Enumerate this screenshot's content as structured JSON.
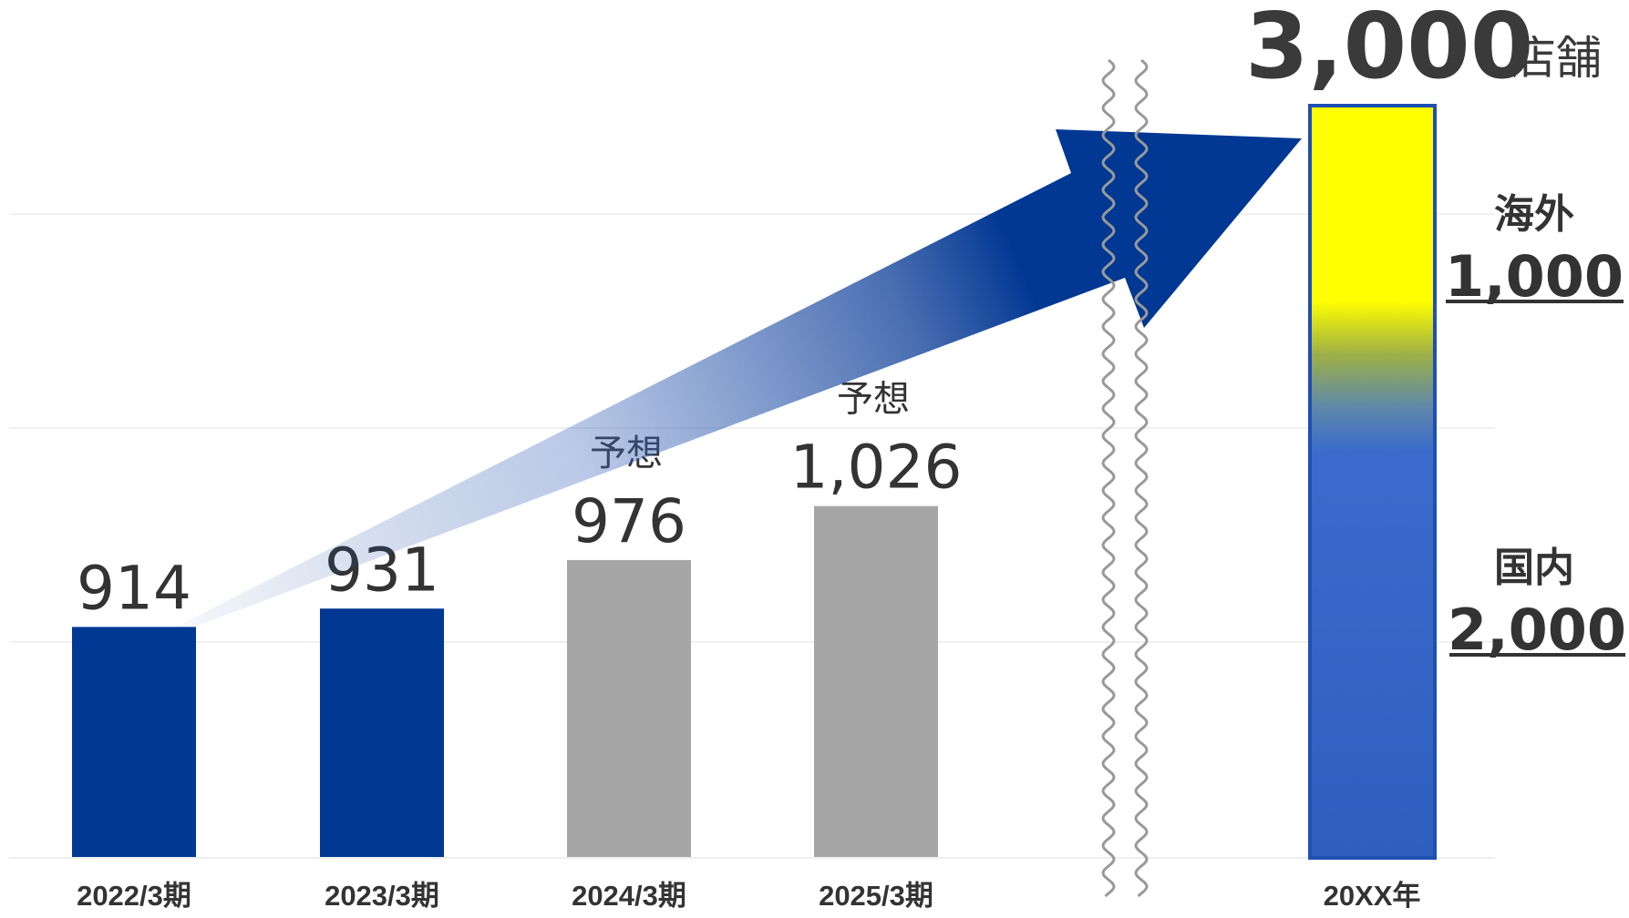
{
  "chart_data": {
    "type": "bar",
    "title": "",
    "xlabel": "",
    "ylabel": "",
    "ylim": [
      700,
      1100
    ],
    "grid": true,
    "categories": [
      "2022/3期",
      "2023/3期",
      "2024/3期",
      "2025/3期"
    ],
    "values": [
      914,
      931,
      976,
      1026
    ],
    "value_labels": [
      "914",
      "931",
      "976",
      "1,026"
    ],
    "notes": [
      "",
      "",
      "予想",
      "予想"
    ],
    "colors": [
      "#003893",
      "#003893",
      "#a6a6a6",
      "#a6a6a6"
    ],
    "target": {
      "category": "20XX年",
      "total_value": 3000,
      "total_label": "3,000",
      "unit": "店舗",
      "segments": [
        {
          "name": "国内",
          "value": 2000,
          "value_label": "2,000",
          "color": "#3366cc"
        },
        {
          "name": "海外",
          "value": 1000,
          "value_label": "1,000",
          "color": "#ffff00"
        }
      ]
    },
    "arrow_color": "#003893",
    "axis_break": true
  }
}
